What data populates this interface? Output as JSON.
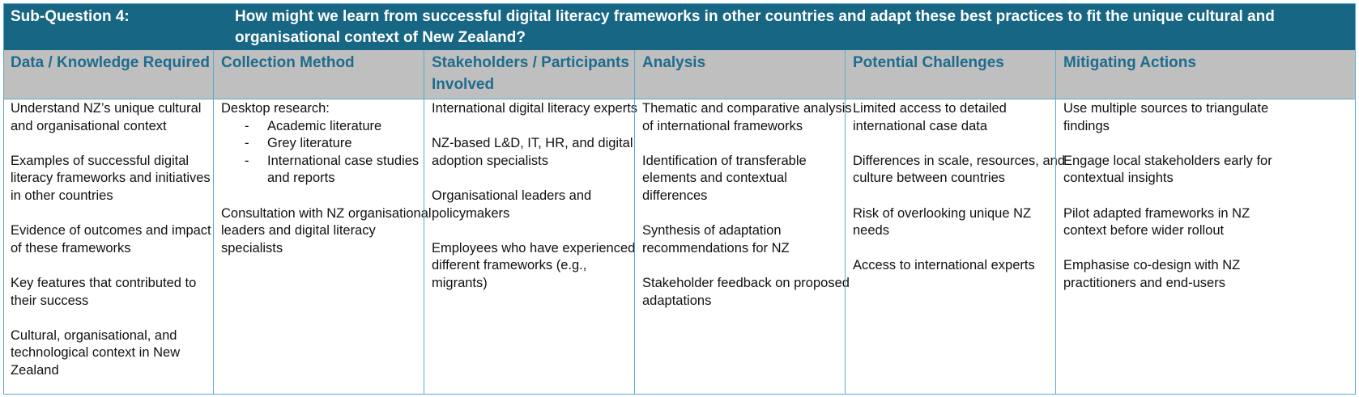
{
  "title": {
    "label": "Sub-Question 4:",
    "question": "How might we learn from successful digital literacy frameworks in other countries and adapt these best practices to fit the unique cultural and organisational context of New Zealand?"
  },
  "columns": {
    "data_knowledge": {
      "header": "Data / Knowledge Required",
      "items": [
        "Understand NZ’s unique cultural and organisational context",
        "Examples of successful digital literacy frameworks and initiatives in other countries",
        "Evidence of outcomes and impact of these frameworks",
        "Key features that contributed to their success",
        "Cultural, organisational, and technological context in New Zealand"
      ]
    },
    "collection_method": {
      "header": "Collection Method",
      "intro": "Desktop research:",
      "bullet_dash": "-",
      "bullets": [
        "Academic literature",
        "Grey literature",
        "International case studies and reports"
      ],
      "items": [
        "Consultation with NZ organisational leaders and digital literacy specialists"
      ]
    },
    "stakeholders": {
      "header": "Stakeholders / Participants Involved",
      "items": [
        "International digital literacy experts",
        "NZ-based L&D, IT, HR, and digital adoption specialists",
        "Organisational leaders and policymakers",
        "Employees who have experienced different frameworks (e.g., migrants)"
      ]
    },
    "analysis": {
      "header": "Analysis",
      "items": [
        "Thematic and comparative analysis of international frameworks",
        "Identification of transferable elements and contextual differences",
        "Synthesis of adaptation recommendations for NZ",
        "Stakeholder feedback on proposed adaptations"
      ]
    },
    "challenges": {
      "header": "Potential Challenges",
      "items": [
        "Limited access to detailed international case data",
        "Differences in scale, resources, and culture between countries",
        "Risk of overlooking unique NZ needs",
        "Access to international experts"
      ]
    },
    "mitigating": {
      "header": "Mitigating Actions",
      "items": [
        "Use multiple sources to triangulate findings",
        "Engage local stakeholders early for contextual insights",
        "Pilot adapted frameworks in NZ context before wider rollout",
        "Emphasise co-design with NZ practitioners and end-users"
      ]
    }
  },
  "colors": {
    "title_bg": "#176684",
    "header_bg": "#bfbfbf",
    "header_text": "#1e6c8d",
    "grid_line": "#5aaacd"
  }
}
